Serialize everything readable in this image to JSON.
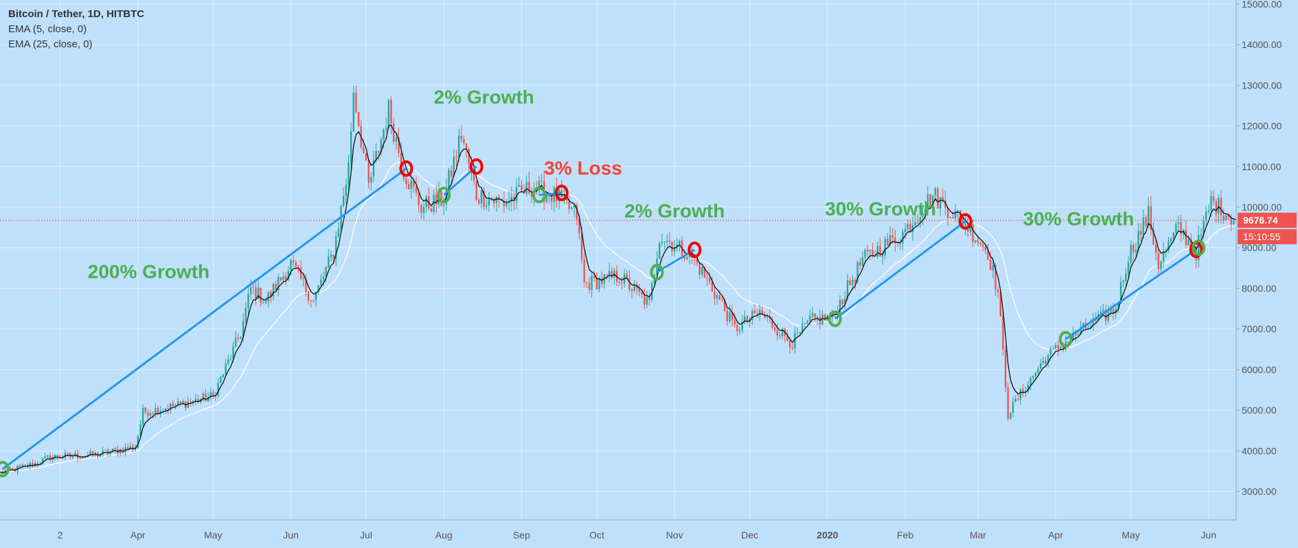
{
  "header": {
    "symbol": "Bitcoin / Tether, 1D, HITBTC",
    "indicators": [
      "EMA (5, close, 0)",
      "EMA (25, close, 0)"
    ]
  },
  "price_badge": {
    "value": "9676.74",
    "countdown": "15:10:55"
  },
  "colors": {
    "background": "#bfe0fb",
    "grid": "#ddeefb",
    "up": "#26a69a",
    "down": "#ef5350",
    "ema_fast": "#111111",
    "ema_slow": "#ffffff",
    "trend_line": "#2196f3",
    "growth_text": "#4caf50",
    "loss_text": "#f44336",
    "entry_marker": "#4caf50",
    "exit_marker": "#f20000",
    "axis_text": "#555555"
  },
  "chart_data": {
    "type": "candlestick",
    "y_axis": {
      "range": [
        2300,
        15100
      ],
      "ticks": [
        "3000.00",
        "4000.00",
        "5000.00",
        "6000.00",
        "7000.00",
        "8000.00",
        "9000.00",
        "10000.00",
        "11000.00",
        "12000.00",
        "13000.00",
        "14000.00",
        "15000.00"
      ],
      "tick_values": [
        3000,
        4000,
        5000,
        6000,
        7000,
        8000,
        9000,
        10000,
        11000,
        12000,
        13000,
        14000,
        15000
      ],
      "side": "right"
    },
    "x_axis": {
      "range": [
        "2019-02-05",
        "2020-06-12"
      ],
      "ticks": [
        {
          "label": "2",
          "date": "2019-03-01",
          "bold": false
        },
        {
          "label": "Apr",
          "date": "2019-04-01",
          "bold": false
        },
        {
          "label": "May",
          "date": "2019-05-01",
          "bold": false
        },
        {
          "label": "Jun",
          "date": "2019-06-01",
          "bold": false
        },
        {
          "label": "Jul",
          "date": "2019-07-01",
          "bold": false
        },
        {
          "label": "Aug",
          "date": "2019-08-01",
          "bold": false
        },
        {
          "label": "Sep",
          "date": "2019-09-01",
          "bold": false
        },
        {
          "label": "Oct",
          "date": "2019-10-01",
          "bold": false
        },
        {
          "label": "Nov",
          "date": "2019-11-01",
          "bold": false
        },
        {
          "label": "Dec",
          "date": "2019-12-01",
          "bold": false
        },
        {
          "label": "2020",
          "date": "2020-01-01",
          "bold": true
        },
        {
          "label": "Feb",
          "date": "2020-02-01",
          "bold": false
        },
        {
          "label": "Mar",
          "date": "2020-03-01",
          "bold": false
        },
        {
          "label": "Apr",
          "date": "2020-04-01",
          "bold": false
        },
        {
          "label": "May",
          "date": "2020-05-01",
          "bold": false
        },
        {
          "label": "Jun",
          "date": "2020-06-01",
          "bold": false
        }
      ]
    },
    "current_price": 9676.74,
    "price_path": [
      {
        "date": "2019-02-05",
        "price": 3450
      },
      {
        "date": "2019-02-20",
        "price": 3700
      },
      {
        "date": "2019-02-25",
        "price": 3850
      },
      {
        "date": "2019-03-15",
        "price": 3900
      },
      {
        "date": "2019-03-31",
        "price": 4100
      },
      {
        "date": "2019-04-03",
        "price": 4950
      },
      {
        "date": "2019-04-15",
        "price": 5100
      },
      {
        "date": "2019-05-01",
        "price": 5350
      },
      {
        "date": "2019-05-12",
        "price": 6900
      },
      {
        "date": "2019-05-16",
        "price": 8000
      },
      {
        "date": "2019-05-22",
        "price": 7700
      },
      {
        "date": "2019-06-01",
        "price": 8600
      },
      {
        "date": "2019-06-10",
        "price": 7700
      },
      {
        "date": "2019-06-18",
        "price": 8900
      },
      {
        "date": "2019-06-24",
        "price": 11000
      },
      {
        "date": "2019-06-26",
        "price": 12900
      },
      {
        "date": "2019-07-02",
        "price": 10500
      },
      {
        "date": "2019-07-10",
        "price": 12400
      },
      {
        "date": "2019-07-16",
        "price": 10900
      },
      {
        "date": "2019-07-23",
        "price": 10000
      },
      {
        "date": "2019-08-01",
        "price": 10200
      },
      {
        "date": "2019-08-08",
        "price": 11800
      },
      {
        "date": "2019-08-14",
        "price": 10300
      },
      {
        "date": "2019-08-25",
        "price": 10100
      },
      {
        "date": "2019-09-05",
        "price": 10500
      },
      {
        "date": "2019-09-15",
        "price": 10250
      },
      {
        "date": "2019-09-23",
        "price": 9800
      },
      {
        "date": "2019-09-26",
        "price": 8100
      },
      {
        "date": "2019-10-10",
        "price": 8300
      },
      {
        "date": "2019-10-22",
        "price": 7600
      },
      {
        "date": "2019-10-26",
        "price": 9300
      },
      {
        "date": "2019-11-08",
        "price": 8800
      },
      {
        "date": "2019-11-20",
        "price": 7600
      },
      {
        "date": "2019-11-25",
        "price": 7000
      },
      {
        "date": "2019-12-05",
        "price": 7400
      },
      {
        "date": "2019-12-18",
        "price": 6650
      },
      {
        "date": "2019-12-25",
        "price": 7200
      },
      {
        "date": "2020-01-03",
        "price": 7300
      },
      {
        "date": "2020-01-15",
        "price": 8700
      },
      {
        "date": "2020-01-31",
        "price": 9350
      },
      {
        "date": "2020-02-12",
        "price": 10300
      },
      {
        "date": "2020-02-25",
        "price": 9600
      },
      {
        "date": "2020-03-05",
        "price": 8900
      },
      {
        "date": "2020-03-09",
        "price": 7900
      },
      {
        "date": "2020-03-13",
        "price": 4900
      },
      {
        "date": "2020-03-17",
        "price": 5300
      },
      {
        "date": "2020-03-28",
        "price": 6300
      },
      {
        "date": "2020-04-10",
        "price": 6900
      },
      {
        "date": "2020-04-25",
        "price": 7500
      },
      {
        "date": "2020-04-30",
        "price": 8800
      },
      {
        "date": "2020-05-08",
        "price": 9800
      },
      {
        "date": "2020-05-12",
        "price": 8600
      },
      {
        "date": "2020-05-20",
        "price": 9500
      },
      {
        "date": "2020-05-27",
        "price": 8900
      },
      {
        "date": "2020-06-02",
        "price": 10150
      },
      {
        "date": "2020-06-12",
        "price": 9676.74
      }
    ],
    "trades": [
      {
        "start": {
          "date": "2019-02-06",
          "price": 3550
        },
        "end": {
          "date": "2019-07-17",
          "price": 10950
        }
      },
      {
        "start": {
          "date": "2019-08-01",
          "price": 10300
        },
        "end": {
          "date": "2019-08-14",
          "price": 11000
        }
      },
      {
        "start": {
          "date": "2019-09-08",
          "price": 10300
        },
        "end": {
          "date": "2019-09-17",
          "price": 10350
        }
      },
      {
        "start": {
          "date": "2019-10-25",
          "price": 8400
        },
        "end": {
          "date": "2019-11-09",
          "price": 8950
        }
      },
      {
        "start": {
          "date": "2020-01-04",
          "price": 7250
        },
        "end": {
          "date": "2020-02-25",
          "price": 9650
        }
      },
      {
        "start": {
          "date": "2020-04-05",
          "price": 6750
        },
        "end": {
          "date": "2020-05-27",
          "price": 8950
        }
      }
    ],
    "markers": [
      {
        "date": "2019-02-06",
        "price": 3550,
        "kind": "entry"
      },
      {
        "date": "2019-07-17",
        "price": 10950,
        "kind": "exit"
      },
      {
        "date": "2019-08-01",
        "price": 10300,
        "kind": "entry"
      },
      {
        "date": "2019-08-14",
        "price": 11000,
        "kind": "exit"
      },
      {
        "date": "2019-09-08",
        "price": 10300,
        "kind": "entry"
      },
      {
        "date": "2019-09-17",
        "price": 10350,
        "kind": "exit"
      },
      {
        "date": "2019-10-25",
        "price": 8400,
        "kind": "entry"
      },
      {
        "date": "2019-11-09",
        "price": 8950,
        "kind": "exit"
      },
      {
        "date": "2020-01-04",
        "price": 7250,
        "kind": "entry"
      },
      {
        "date": "2020-02-25",
        "price": 9650,
        "kind": "exit"
      },
      {
        "date": "2020-04-05",
        "price": 6750,
        "kind": "entry"
      },
      {
        "date": "2020-05-27",
        "price": 8950,
        "kind": "exit"
      },
      {
        "date": "2020-05-28",
        "price": 9000,
        "kind": "entry"
      }
    ],
    "annotations": [
      {
        "text": "200% Growth",
        "date": "2019-03-12",
        "price": 8250,
        "kind": "growth"
      },
      {
        "text": "2% Growth",
        "date": "2019-07-28",
        "price": 12550,
        "kind": "growth"
      },
      {
        "text": "3% Loss",
        "date": "2019-09-10",
        "price": 10800,
        "kind": "loss"
      },
      {
        "text": "2% Growth",
        "date": "2019-10-12",
        "price": 9750,
        "kind": "growth"
      },
      {
        "text": "30% Growth",
        "date": "2019-12-31",
        "price": 9800,
        "kind": "growth"
      },
      {
        "text": "30% Growth",
        "date": "2020-03-19",
        "price": 9550,
        "kind": "growth"
      }
    ]
  }
}
